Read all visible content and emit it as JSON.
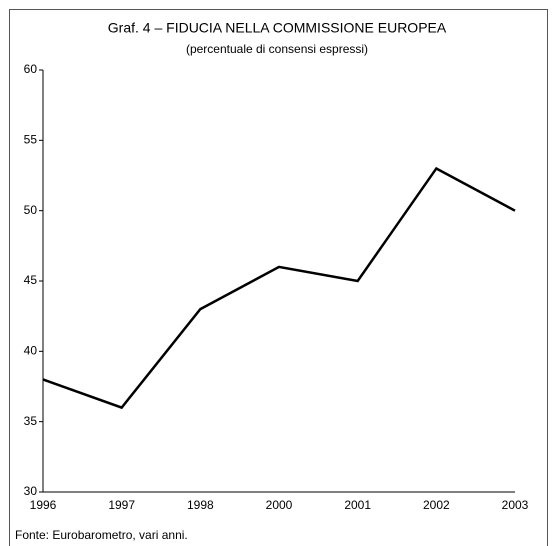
{
  "chart_data": {
    "type": "line",
    "title": "Graf. 4 – FIDUCIA NELLA COMMISSIONE EUROPEA",
    "subtitle": "(percentuale di consensi espressi)",
    "source": "Fonte: Eurobarometro, vari anni.",
    "categories": [
      "1996",
      "1997",
      "1998",
      "2000",
      "2001",
      "2002",
      "2003"
    ],
    "values": [
      38,
      36,
      43,
      46,
      45,
      53,
      50
    ],
    "color": "#000000",
    "ylim": [
      30,
      60
    ],
    "yticks": [
      30,
      35,
      40,
      45,
      50,
      55,
      60
    ],
    "grid": false
  }
}
